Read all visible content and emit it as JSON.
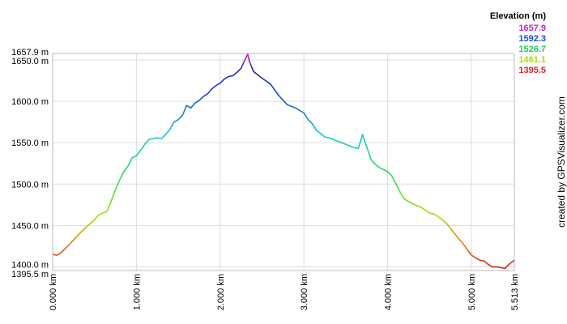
{
  "chart_data": {
    "type": "line",
    "y_unit": "m",
    "x_unit": "km",
    "legend_title": "Elevation (m)",
    "legend": [
      {
        "label": "1657.9",
        "color": "#cc22cc"
      },
      {
        "label": "1592.3",
        "color": "#1a4fd0"
      },
      {
        "label": "1526.7",
        "color": "#22cc66"
      },
      {
        "label": "1461.1",
        "color": "#aadd00"
      },
      {
        "label": "1395.5",
        "color": "#dd2222"
      }
    ],
    "credit": "created by GPSVisualizer.com",
    "xlim": [
      0,
      5.513
    ],
    "ylim": [
      1395.5,
      1657.9
    ],
    "x_ticks": [
      {
        "value": 0,
        "label": "0.000 km"
      },
      {
        "value": 1,
        "label": "1.000 km"
      },
      {
        "value": 2,
        "label": "2.000 km"
      },
      {
        "value": 3,
        "label": "3.000 km"
      },
      {
        "value": 4,
        "label": "4.000 km"
      },
      {
        "value": 5,
        "label": "5.000 km"
      },
      {
        "value": 5.513,
        "label": "5.513 km"
      }
    ],
    "y_ticks": [
      {
        "value": 1395.5,
        "label": "1395.5 m"
      },
      {
        "value": 1400,
        "label": "1400.0 m"
      },
      {
        "value": 1450,
        "label": "1450.0 m"
      },
      {
        "value": 1500,
        "label": "1500.0 m"
      },
      {
        "value": 1550,
        "label": "1550.0 m"
      },
      {
        "value": 1600,
        "label": "1600.0 m"
      },
      {
        "value": 1650,
        "label": "1650.0 m"
      },
      {
        "value": 1657.9,
        "label": "1657.9 m"
      }
    ],
    "grid": true,
    "series": [
      {
        "x": [
          0,
          0.05,
          0.1,
          0.2,
          0.3,
          0.4,
          0.5,
          0.55,
          0.6,
          0.65,
          0.7,
          0.75,
          0.8,
          0.85,
          0.9,
          0.95,
          1.0,
          1.05,
          1.1,
          1.15,
          1.2,
          1.25,
          1.3,
          1.35,
          1.4,
          1.45,
          1.5,
          1.55,
          1.6,
          1.65,
          1.7,
          1.75,
          1.8,
          1.85,
          1.9,
          1.95,
          2.0,
          2.05,
          2.1,
          2.15,
          2.2,
          2.25,
          2.3,
          2.33,
          2.35,
          2.4,
          2.5,
          2.6,
          2.7,
          2.8,
          2.9,
          3.0,
          3.05,
          3.1,
          3.15,
          3.2,
          3.25,
          3.3,
          3.4,
          3.5,
          3.6,
          3.65,
          3.7,
          3.72,
          3.75,
          3.8,
          3.85,
          3.9,
          4.0,
          4.05,
          4.1,
          4.15,
          4.2,
          4.3,
          4.4,
          4.5,
          4.55,
          4.6,
          4.7,
          4.8,
          4.9,
          5.0,
          5.05,
          5.1,
          5.15,
          5.2,
          5.25,
          5.3,
          5.35,
          5.4,
          5.45,
          5.5,
          5.513
        ],
        "y": [
          1415,
          1414,
          1417,
          1427,
          1438,
          1448,
          1457,
          1463,
          1465,
          1467,
          1480,
          1493,
          1505,
          1515,
          1522,
          1532,
          1534,
          1541,
          1548,
          1554,
          1555,
          1556,
          1555,
          1560,
          1566,
          1575,
          1578,
          1583,
          1595,
          1592,
          1598,
          1601,
          1606,
          1609,
          1615,
          1619,
          1622,
          1627,
          1630,
          1631,
          1635,
          1640,
          1651,
          1657,
          1648,
          1636,
          1628,
          1621,
          1607,
          1596,
          1592,
          1586,
          1578,
          1573,
          1565,
          1561,
          1557,
          1556,
          1552,
          1548,
          1544,
          1543,
          1560,
          1554,
          1545,
          1530,
          1524,
          1520,
          1515,
          1510,
          1500,
          1490,
          1482,
          1476,
          1472,
          1465,
          1464,
          1461,
          1453,
          1440,
          1428,
          1414,
          1411,
          1408,
          1407,
          1403,
          1400,
          1400,
          1399,
          1398,
          1403,
          1407,
          1408
        ]
      }
    ]
  }
}
